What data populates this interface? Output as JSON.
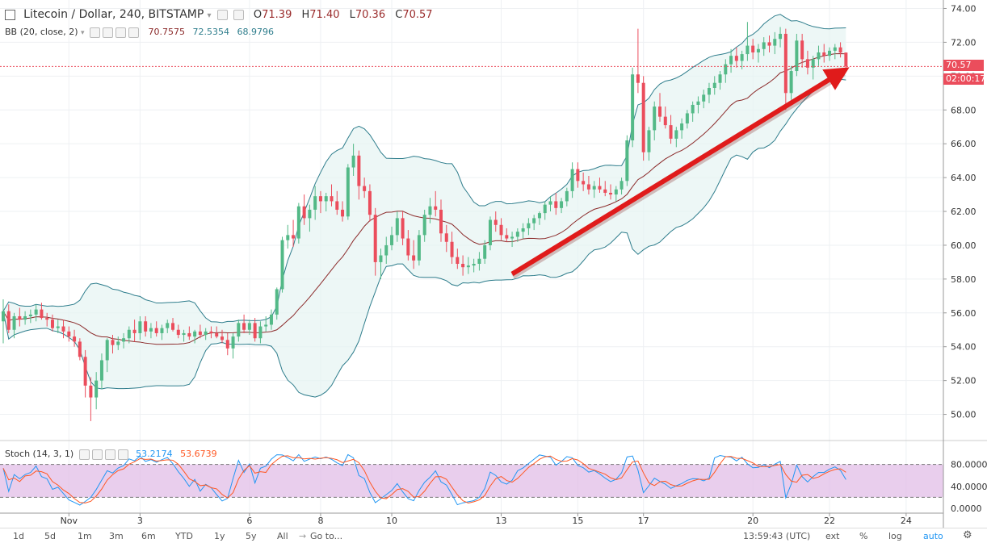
{
  "header": {
    "symbol": "Litecoin / Dollar, 240, BITSTAMP",
    "o_label": "O",
    "o_value": "71.39",
    "h_label": "H",
    "h_value": "71.40",
    "l_label": "L",
    "l_value": "70.36",
    "c_label": "C",
    "c_value": "70.57"
  },
  "indicators": {
    "bb_label": "BB (20, close, 2)",
    "bb_values": [
      "70.7575",
      "72.5354",
      "68.9796"
    ],
    "stoch_label": "Stoch (14, 3, 1)",
    "stoch_values": [
      "53.2174",
      "53.6739"
    ]
  },
  "price_axis": {
    "ticks": [
      "74.00",
      "72.00",
      "70.00",
      "68.00",
      "66.00",
      "64.00",
      "62.00",
      "60.00",
      "58.00",
      "56.00",
      "54.00",
      "52.00",
      "50.00"
    ],
    "last_price": "70.57",
    "countdown": "02:00:17"
  },
  "stoch_axis": {
    "ticks": [
      "80.0000",
      "40.0000",
      "0.0000"
    ]
  },
  "time_axis": {
    "ticks": [
      "Nov",
      "3",
      "6",
      "8",
      "10",
      "13",
      "15",
      "17",
      "20",
      "22",
      "24"
    ]
  },
  "bottom_bar": {
    "ranges": [
      "1d",
      "5d",
      "1m",
      "3m",
      "6m",
      "YTD",
      "1y",
      "5y",
      "All"
    ],
    "goto": "Go to...",
    "time": "13:59:43 (UTC)",
    "ext": "ext",
    "percent": "%",
    "log": "log",
    "auto": "auto"
  },
  "colors": {
    "up": "#53b987",
    "down": "#eb4d5c",
    "bb_band": "#2e7d8c",
    "bb_basis": "#8b2a2a",
    "stoch_k": "#2196f3",
    "stoch_d": "#ff5722",
    "stoch_bg": "#e1bee7",
    "arrow": "#e01b1b"
  },
  "chart_data": {
    "type": "candlestick",
    "title": "Litecoin / Dollar, 240, BITSTAMP",
    "ylim": [
      48.5,
      74.5
    ],
    "x_index_range": [
      0,
      160
    ],
    "x_ticks": [
      {
        "label": "Nov",
        "i": 12
      },
      {
        "label": "3",
        "i": 25
      },
      {
        "label": "6",
        "i": 45
      },
      {
        "label": "8",
        "i": 58
      },
      {
        "label": "10",
        "i": 71
      },
      {
        "label": "13",
        "i": 91
      },
      {
        "label": "15",
        "i": 105
      },
      {
        "label": "17",
        "i": 117
      },
      {
        "label": "20",
        "i": 137
      },
      {
        "label": "22",
        "i": 151
      },
      {
        "label": "24",
        "i": 165
      }
    ],
    "candles": [
      [
        55.5,
        56.8,
        54.2,
        56.1
      ],
      [
        56.1,
        56.5,
        54.8,
        55.0
      ],
      [
        55.0,
        56.0,
        54.5,
        55.8
      ],
      [
        55.8,
        56.3,
        55.2,
        55.6
      ],
      [
        55.6,
        56.1,
        55.3,
        55.8
      ],
      [
        55.8,
        56.2,
        55.4,
        55.9
      ],
      [
        55.9,
        56.5,
        55.5,
        56.2
      ],
      [
        56.2,
        56.6,
        55.6,
        55.7
      ],
      [
        55.7,
        56.0,
        55.2,
        55.6
      ],
      [
        55.6,
        55.9,
        54.9,
        55.1
      ],
      [
        55.1,
        55.6,
        54.8,
        55.2
      ],
      [
        55.2,
        55.6,
        54.5,
        54.9
      ],
      [
        54.9,
        55.2,
        54.3,
        54.6
      ],
      [
        54.6,
        55.0,
        54.0,
        54.3
      ],
      [
        54.3,
        54.5,
        53.2,
        53.4
      ],
      [
        53.4,
        53.8,
        51.0,
        51.7
      ],
      [
        51.7,
        52.2,
        49.6,
        51.0
      ],
      [
        51.0,
        52.5,
        50.3,
        52.0
      ],
      [
        52.0,
        53.6,
        51.5,
        53.2
      ],
      [
        53.2,
        54.5,
        52.5,
        54.4
      ],
      [
        54.4,
        54.7,
        53.6,
        54.1
      ],
      [
        54.1,
        54.6,
        53.8,
        54.3
      ],
      [
        54.3,
        54.8,
        53.9,
        54.5
      ],
      [
        54.5,
        55.2,
        54.2,
        55.0
      ],
      [
        55.0,
        55.6,
        54.3,
        54.8
      ],
      [
        54.8,
        55.8,
        54.4,
        55.5
      ],
      [
        55.5,
        55.8,
        54.6,
        54.9
      ],
      [
        54.9,
        55.4,
        54.5,
        55.1
      ],
      [
        55.1,
        55.5,
        54.6,
        54.8
      ],
      [
        54.8,
        55.3,
        54.4,
        55.1
      ],
      [
        55.1,
        55.6,
        54.8,
        55.4
      ],
      [
        55.4,
        55.7,
        54.9,
        55.0
      ],
      [
        55.0,
        55.3,
        54.5,
        54.7
      ],
      [
        54.7,
        55.0,
        54.3,
        54.8
      ],
      [
        54.8,
        55.2,
        54.4,
        54.6
      ],
      [
        54.6,
        55.0,
        54.2,
        54.9
      ],
      [
        54.9,
        55.3,
        54.5,
        54.7
      ],
      [
        54.7,
        55.1,
        54.4,
        54.9
      ],
      [
        54.9,
        55.2,
        54.5,
        54.8
      ],
      [
        54.8,
        55.2,
        54.5,
        54.6
      ],
      [
        54.6,
        55.0,
        54.2,
        54.4
      ],
      [
        54.4,
        54.8,
        53.5,
        53.9
      ],
      [
        53.9,
        54.8,
        53.3,
        54.6
      ],
      [
        54.6,
        55.6,
        54.3,
        55.4
      ],
      [
        55.4,
        55.9,
        54.8,
        55.0
      ],
      [
        55.0,
        55.6,
        54.7,
        55.4
      ],
      [
        55.4,
        55.7,
        54.3,
        54.5
      ],
      [
        54.5,
        55.5,
        54.2,
        55.2
      ],
      [
        55.2,
        55.8,
        54.9,
        55.3
      ],
      [
        55.3,
        56.2,
        55.0,
        55.9
      ],
      [
        55.9,
        57.5,
        55.6,
        57.4
      ],
      [
        57.4,
        60.5,
        57.2,
        60.3
      ],
      [
        60.3,
        61.2,
        59.8,
        60.6
      ],
      [
        60.6,
        61.5,
        59.9,
        60.4
      ],
      [
        60.4,
        62.5,
        60.1,
        62.3
      ],
      [
        62.3,
        63.0,
        61.2,
        61.6
      ],
      [
        61.6,
        62.4,
        60.8,
        62.1
      ],
      [
        62.1,
        63.5,
        61.5,
        62.9
      ],
      [
        62.9,
        63.2,
        61.9,
        62.6
      ],
      [
        62.6,
        63.1,
        62.0,
        62.9
      ],
      [
        62.9,
        63.6,
        62.3,
        62.6
      ],
      [
        62.6,
        63.2,
        61.8,
        62.1
      ],
      [
        62.1,
        62.6,
        61.4,
        61.7
      ],
      [
        61.7,
        64.8,
        61.5,
        64.6
      ],
      [
        64.6,
        66.0,
        64.1,
        65.3
      ],
      [
        65.3,
        65.6,
        62.7,
        63.5
      ],
      [
        63.5,
        64.0,
        62.8,
        63.2
      ],
      [
        63.2,
        63.6,
        61.4,
        61.8
      ],
      [
        61.8,
        62.2,
        58.2,
        59.0
      ],
      [
        59.0,
        59.8,
        58.0,
        59.4
      ],
      [
        59.4,
        60.5,
        58.9,
        60.0
      ],
      [
        60.0,
        61.1,
        59.7,
        60.6
      ],
      [
        60.6,
        62.0,
        60.2,
        61.6
      ],
      [
        61.6,
        62.0,
        60.0,
        60.4
      ],
      [
        60.4,
        60.9,
        59.1,
        59.4
      ],
      [
        59.4,
        60.3,
        58.6,
        59.1
      ],
      [
        59.1,
        60.9,
        58.8,
        60.6
      ],
      [
        60.6,
        62.1,
        60.2,
        61.8
      ],
      [
        61.8,
        62.8,
        61.3,
        62.3
      ],
      [
        62.3,
        63.2,
        61.7,
        62.1
      ],
      [
        62.1,
        62.7,
        60.2,
        60.7
      ],
      [
        60.7,
        61.2,
        59.6,
        60.2
      ],
      [
        60.2,
        60.8,
        58.9,
        59.3
      ],
      [
        59.3,
        59.8,
        58.6,
        58.9
      ],
      [
        58.9,
        59.4,
        58.2,
        58.7
      ],
      [
        58.7,
        59.3,
        58.3,
        58.8
      ],
      [
        58.8,
        59.2,
        58.4,
        58.9
      ],
      [
        58.9,
        59.6,
        58.5,
        59.2
      ],
      [
        59.2,
        60.3,
        58.9,
        60.0
      ],
      [
        60.0,
        61.7,
        59.7,
        61.5
      ],
      [
        61.5,
        62.0,
        60.8,
        61.2
      ],
      [
        61.2,
        61.6,
        60.3,
        60.6
      ],
      [
        60.6,
        61.0,
        60.2,
        60.4
      ],
      [
        60.4,
        60.8,
        59.9,
        60.5
      ],
      [
        60.5,
        61.0,
        60.2,
        60.8
      ],
      [
        60.8,
        61.3,
        60.4,
        61.0
      ],
      [
        61.0,
        61.6,
        60.6,
        61.3
      ],
      [
        61.3,
        61.8,
        60.9,
        61.6
      ],
      [
        61.6,
        62.0,
        61.2,
        61.9
      ],
      [
        61.9,
        62.6,
        61.5,
        62.4
      ],
      [
        62.4,
        62.9,
        62.0,
        62.6
      ],
      [
        62.6,
        63.1,
        61.8,
        62.2
      ],
      [
        62.2,
        62.8,
        61.9,
        62.6
      ],
      [
        62.6,
        63.4,
        62.3,
        63.2
      ],
      [
        63.2,
        64.9,
        62.8,
        64.5
      ],
      [
        64.5,
        64.9,
        63.4,
        63.8
      ],
      [
        63.8,
        64.3,
        63.2,
        63.6
      ],
      [
        63.6,
        64.1,
        63.0,
        63.3
      ],
      [
        63.3,
        63.8,
        62.8,
        63.5
      ],
      [
        63.5,
        64.0,
        63.1,
        63.3
      ],
      [
        63.3,
        63.8,
        62.9,
        63.1
      ],
      [
        63.1,
        63.6,
        62.7,
        63.0
      ],
      [
        63.0,
        63.5,
        62.6,
        63.3
      ],
      [
        63.3,
        64.0,
        63.0,
        63.8
      ],
      [
        63.8,
        66.5,
        63.5,
        66.2
      ],
      [
        66.2,
        70.5,
        65.8,
        70.1
      ],
      [
        70.1,
        72.8,
        69.0,
        69.6
      ],
      [
        69.6,
        70.0,
        65.0,
        65.5
      ],
      [
        65.5,
        67.0,
        65.0,
        66.8
      ],
      [
        66.8,
        68.5,
        66.2,
        68.2
      ],
      [
        68.2,
        69.0,
        67.3,
        67.6
      ],
      [
        67.6,
        68.2,
        66.9,
        67.1
      ],
      [
        67.1,
        67.7,
        66.0,
        66.3
      ],
      [
        66.3,
        67.0,
        65.8,
        66.8
      ],
      [
        66.8,
        67.5,
        66.3,
        67.2
      ],
      [
        67.2,
        68.0,
        66.9,
        67.8
      ],
      [
        67.8,
        68.5,
        67.3,
        68.3
      ],
      [
        68.3,
        68.8,
        67.8,
        68.5
      ],
      [
        68.5,
        69.2,
        68.1,
        68.9
      ],
      [
        68.9,
        69.6,
        68.4,
        69.3
      ],
      [
        69.3,
        70.0,
        68.9,
        69.6
      ],
      [
        69.6,
        70.3,
        69.2,
        70.1
      ],
      [
        70.1,
        71.0,
        69.6,
        70.7
      ],
      [
        70.7,
        71.6,
        70.2,
        71.2
      ],
      [
        71.2,
        71.7,
        70.5,
        70.9
      ],
      [
        70.9,
        71.5,
        70.4,
        71.3
      ],
      [
        71.3,
        73.2,
        70.9,
        71.8
      ],
      [
        71.8,
        72.2,
        71.0,
        71.4
      ],
      [
        71.4,
        71.9,
        70.8,
        71.6
      ],
      [
        71.6,
        72.3,
        71.2,
        72.0
      ],
      [
        72.0,
        72.4,
        71.4,
        71.8
      ],
      [
        71.8,
        72.6,
        71.3,
        72.2
      ],
      [
        72.2,
        72.9,
        71.7,
        72.5
      ],
      [
        72.5,
        72.8,
        68.0,
        69.0
      ],
      [
        69.0,
        70.6,
        68.6,
        70.3
      ],
      [
        70.3,
        72.5,
        70.0,
        72.1
      ],
      [
        72.1,
        72.5,
        70.5,
        71.0
      ],
      [
        71.0,
        71.5,
        70.1,
        70.5
      ],
      [
        70.5,
        71.2,
        69.8,
        71.0
      ],
      [
        71.0,
        71.8,
        70.6,
        71.4
      ],
      [
        71.4,
        71.9,
        70.8,
        71.2
      ],
      [
        71.2,
        71.7,
        70.9,
        71.5
      ],
      [
        71.5,
        71.9,
        71.0,
        71.7
      ],
      [
        71.7,
        72.0,
        71.1,
        71.39
      ],
      [
        71.39,
        71.4,
        70.36,
        70.57
      ]
    ]
  }
}
